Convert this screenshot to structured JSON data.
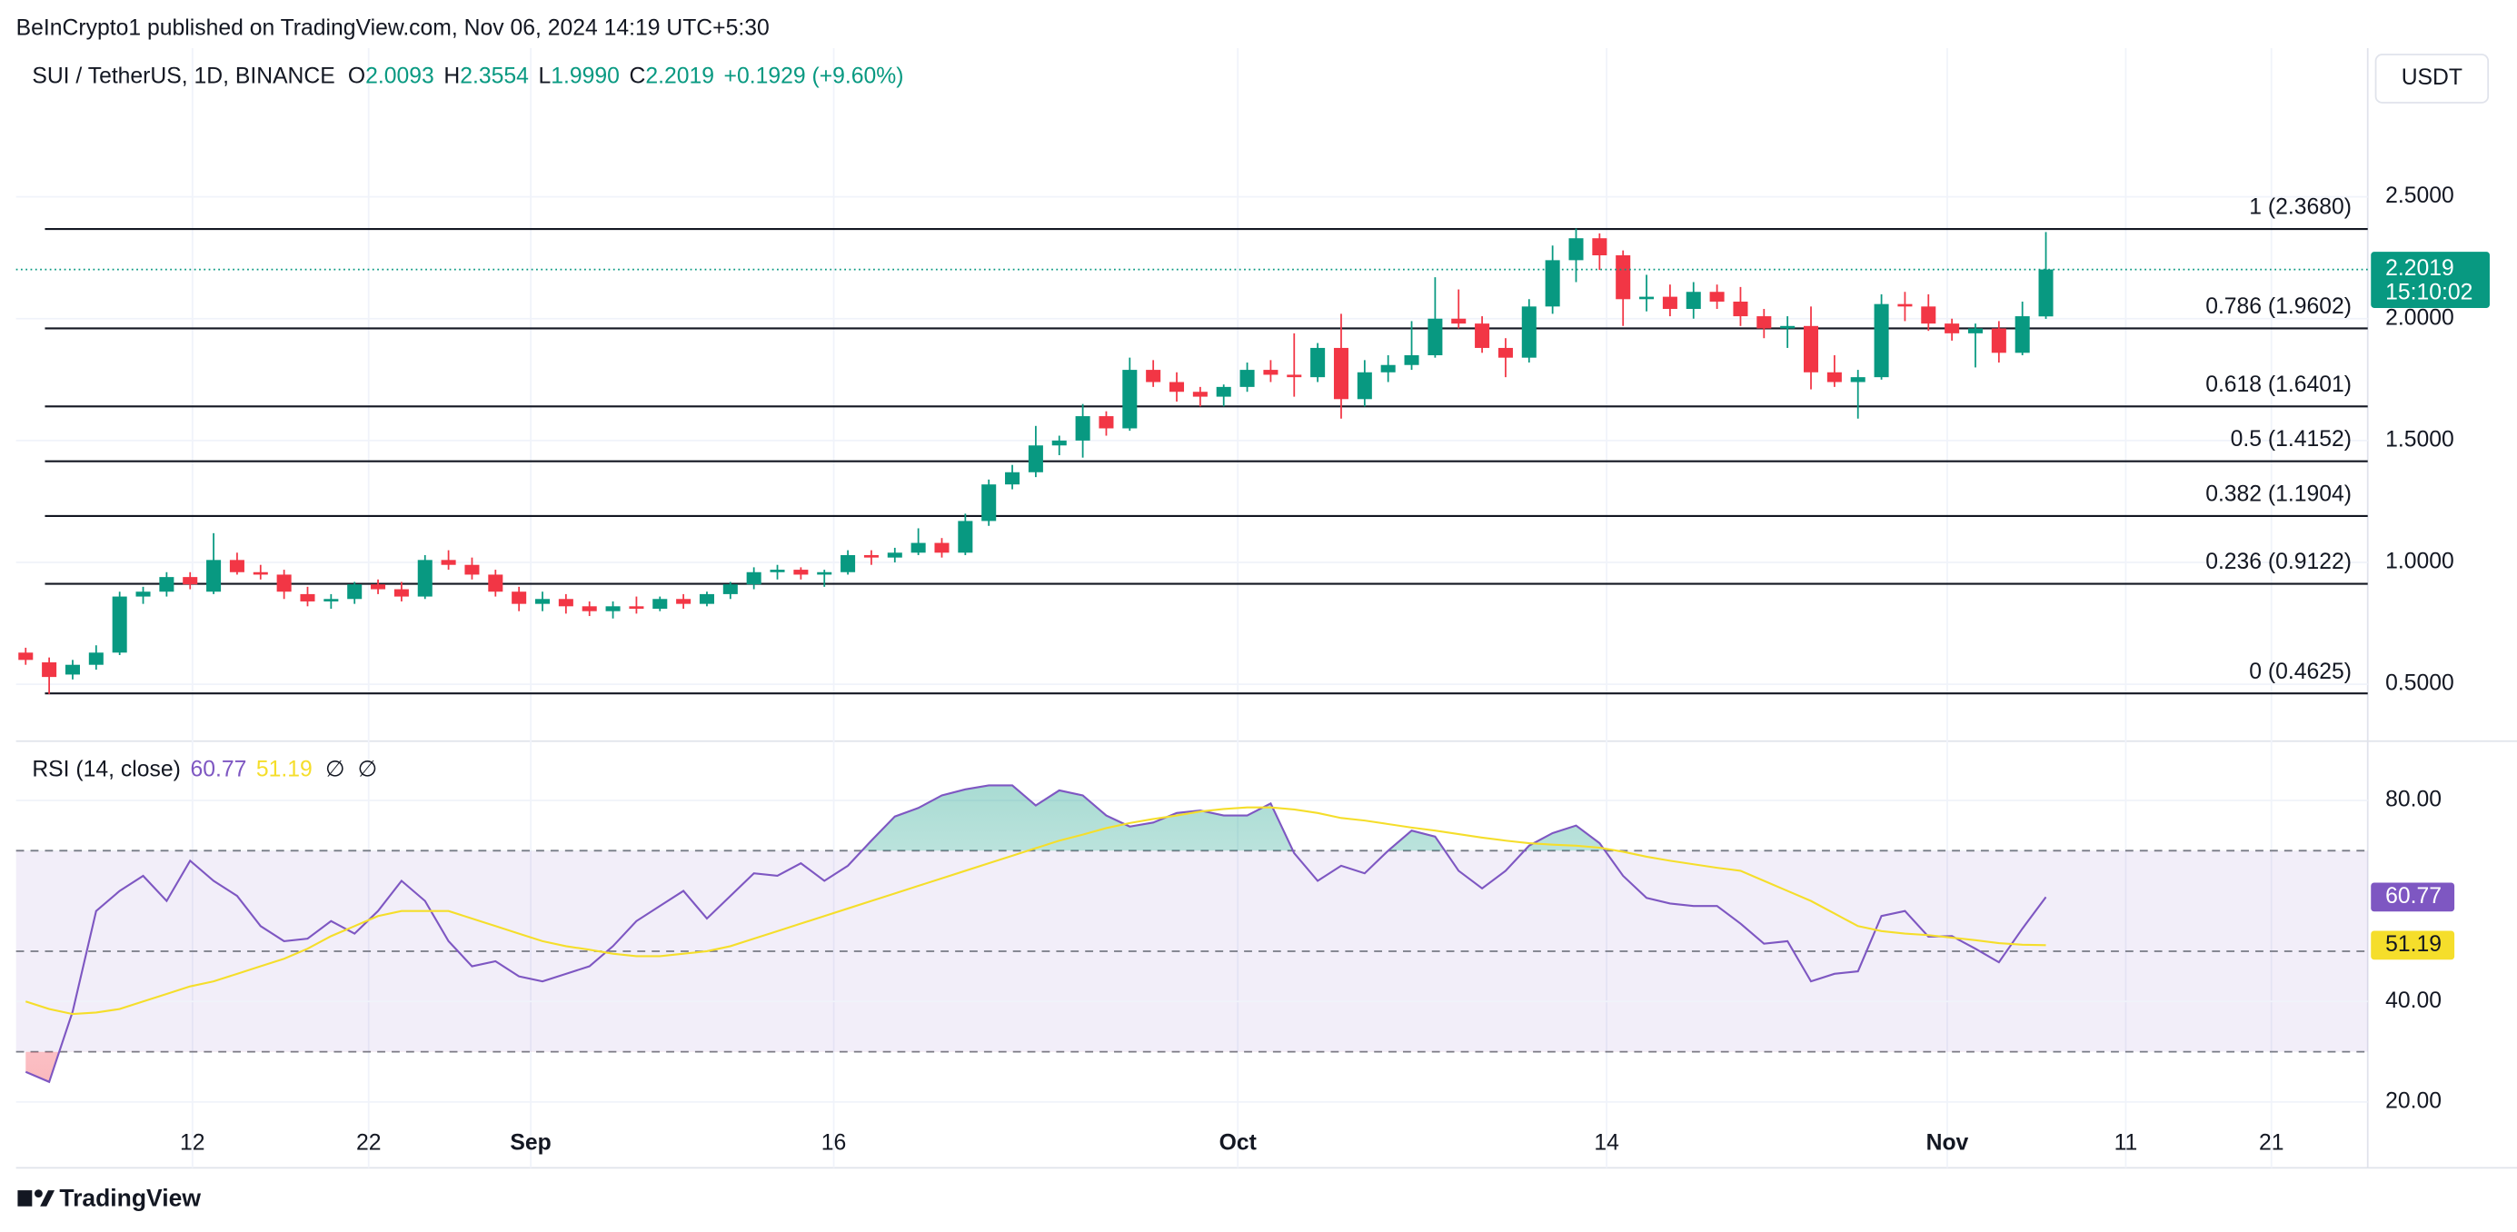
{
  "header": {
    "published": "BeInCrypto1 published on TradingView.com, Nov 06, 2024 14:19 UTC+5:30",
    "currency": "USDT",
    "footer": "TradingView"
  },
  "chart_data": [
    {
      "type": "candlestick",
      "title": "SUI / TetherUS, 1D, BINANCE",
      "ohlc": [
        {
          "key": "O",
          "value": "2.0093"
        },
        {
          "key": "H",
          "value": "2.3554"
        },
        {
          "key": "L",
          "value": "1.9990"
        },
        {
          "key": "C",
          "value": "2.2019"
        }
      ],
      "change": "+0.1929 (+9.60%)",
      "countdown": "15:10:02",
      "up_color": "#089981",
      "down_color": "#f23645",
      "open": [
        0.63,
        0.59,
        0.54,
        0.58,
        0.63,
        0.86,
        0.88,
        0.94,
        0.88,
        1.01,
        0.96,
        0.95,
        0.87,
        0.84,
        0.85,
        0.91,
        0.89,
        0.86,
        1.01,
        0.99,
        0.95,
        0.88,
        0.83,
        0.85,
        0.82,
        0.8,
        0.82,
        0.81,
        0.85,
        0.83,
        0.87,
        0.91,
        0.96,
        0.97,
        0.95,
        0.96,
        1.03,
        1.02,
        1.04,
        1.08,
        1.04,
        1.17,
        1.32,
        1.37,
        1.48,
        1.5,
        1.6,
        1.55,
        1.79,
        1.74,
        1.7,
        1.68,
        1.72,
        1.79,
        1.77,
        1.76,
        1.88,
        1.67,
        1.78,
        1.81,
        1.85,
        2.0,
        1.98,
        1.88,
        1.84,
        2.05,
        2.24,
        2.33,
        2.26,
        2.08,
        2.09,
        2.04,
        2.11,
        2.07,
        2.01,
        1.96,
        1.97,
        1.78,
        1.74,
        1.76,
        2.06,
        2.05,
        1.98,
        1.94,
        1.96,
        1.86,
        2.0093
      ],
      "high": [
        0.65,
        0.61,
        0.6,
        0.66,
        0.88,
        0.9,
        0.96,
        0.96,
        1.12,
        1.04,
        0.99,
        0.97,
        0.9,
        0.87,
        0.92,
        0.93,
        0.92,
        1.03,
        1.05,
        1.02,
        0.97,
        0.9,
        0.88,
        0.87,
        0.84,
        0.84,
        0.86,
        0.86,
        0.87,
        0.88,
        0.92,
        0.98,
        0.99,
        0.98,
        0.97,
        1.05,
        1.05,
        1.06,
        1.14,
        1.1,
        1.2,
        1.34,
        1.4,
        1.56,
        1.52,
        1.65,
        1.62,
        1.84,
        1.83,
        1.78,
        1.72,
        1.73,
        1.82,
        1.83,
        1.94,
        1.9,
        2.02,
        1.83,
        1.85,
        1.99,
        2.17,
        2.12,
        2.01,
        1.92,
        2.08,
        2.3,
        2.37,
        2.35,
        2.28,
        2.18,
        2.14,
        2.15,
        2.14,
        2.13,
        2.04,
        2.01,
        2.05,
        1.85,
        1.79,
        2.1,
        2.11,
        2.1,
        2.0,
        1.98,
        1.99,
        2.07,
        2.3554
      ],
      "low": [
        0.58,
        0.46,
        0.52,
        0.56,
        0.62,
        0.83,
        0.86,
        0.89,
        0.87,
        0.95,
        0.93,
        0.85,
        0.82,
        0.81,
        0.83,
        0.87,
        0.84,
        0.85,
        0.97,
        0.93,
        0.86,
        0.8,
        0.8,
        0.79,
        0.78,
        0.77,
        0.79,
        0.8,
        0.81,
        0.82,
        0.85,
        0.89,
        0.93,
        0.93,
        0.9,
        0.95,
        0.99,
        1.0,
        1.03,
        1.02,
        1.03,
        1.15,
        1.3,
        1.35,
        1.44,
        1.43,
        1.52,
        1.54,
        1.72,
        1.66,
        1.64,
        1.64,
        1.7,
        1.74,
        1.68,
        1.74,
        1.59,
        1.64,
        1.74,
        1.79,
        1.84,
        1.96,
        1.86,
        1.76,
        1.82,
        2.02,
        2.15,
        2.2,
        1.97,
        2.03,
        2.01,
        2.0,
        2.04,
        1.97,
        1.92,
        1.88,
        1.71,
        1.72,
        1.59,
        1.75,
        1.99,
        1.95,
        1.91,
        1.8,
        1.82,
        1.85,
        1.999
      ],
      "close": [
        0.6,
        0.53,
        0.58,
        0.63,
        0.86,
        0.88,
        0.94,
        0.91,
        1.01,
        0.96,
        0.95,
        0.88,
        0.84,
        0.85,
        0.91,
        0.89,
        0.86,
        1.01,
        0.99,
        0.95,
        0.88,
        0.83,
        0.85,
        0.82,
        0.8,
        0.82,
        0.81,
        0.85,
        0.83,
        0.87,
        0.91,
        0.96,
        0.97,
        0.95,
        0.96,
        1.03,
        1.02,
        1.04,
        1.08,
        1.04,
        1.17,
        1.32,
        1.37,
        1.48,
        1.5,
        1.6,
        1.55,
        1.79,
        1.74,
        1.7,
        1.68,
        1.72,
        1.79,
        1.77,
        1.76,
        1.88,
        1.67,
        1.78,
        1.81,
        1.85,
        2.0,
        1.98,
        1.88,
        1.84,
        2.05,
        2.24,
        2.33,
        2.26,
        2.08,
        2.09,
        2.04,
        2.11,
        2.07,
        2.01,
        1.96,
        1.97,
        1.78,
        1.74,
        1.76,
        2.06,
        2.05,
        1.98,
        1.94,
        1.96,
        1.86,
        2.01,
        2.2019
      ],
      "xlim": [
        -0.41,
        99.7
      ],
      "xticks": [
        {
          "value": 7.1,
          "label": "12"
        },
        {
          "value": 14.6,
          "label": "22"
        },
        {
          "value": 21.5,
          "label": "Sep"
        },
        {
          "value": 34.4,
          "label": "16"
        },
        {
          "value": 51.6,
          "label": "Oct"
        },
        {
          "value": 67.3,
          "label": "14"
        },
        {
          "value": 81.8,
          "label": "Nov"
        },
        {
          "value": 89.4,
          "label": "11"
        },
        {
          "value": 95.6,
          "label": "21"
        }
      ],
      "ylim": [
        0.28,
        3.11
      ],
      "yticks": [
        {
          "value": 0.5,
          "label": "0.5000"
        },
        {
          "value": 1,
          "label": "1.0000"
        },
        {
          "value": 1.5,
          "label": "1.5000"
        },
        {
          "value": 2,
          "label": "2.0000"
        },
        {
          "value": 2.5,
          "label": "2.5000"
        }
      ],
      "levels": [
        {
          "value": 2.368,
          "label": "1 (2.3680)"
        },
        {
          "value": 1.9602,
          "label": "0.786 (1.9602)"
        },
        {
          "value": 1.6401,
          "label": "0.618 (1.6401)"
        },
        {
          "value": 1.4152,
          "label": "0.5 (1.4152)"
        },
        {
          "value": 1.1904,
          "label": "0.382 (1.1904)"
        },
        {
          "value": 0.9122,
          "label": "0.236 (0.9122)"
        },
        {
          "value": 0.4625,
          "label": "0 (0.4625)"
        }
      ],
      "grid": true
    },
    {
      "type": "line",
      "title": "RSI (14, close)",
      "markers": [
        "∅",
        "∅"
      ],
      "series": [
        {
          "color": "#7e57c2",
          "values": [
            26,
            24,
            38,
            58,
            62,
            65,
            60,
            68,
            64,
            61,
            55,
            52,
            52.5,
            56,
            53.5,
            58,
            64,
            60,
            52,
            47,
            48,
            45,
            44,
            45.5,
            47,
            51,
            56,
            59,
            62,
            56.5,
            61,
            65.5,
            65,
            67.5,
            64,
            67,
            72,
            76.8,
            78.5,
            81,
            82.2,
            83,
            83,
            79,
            82,
            81,
            77,
            74.8,
            75.6,
            77.5,
            78,
            77,
            77,
            79.4,
            69.5,
            64,
            67,
            65.5,
            70,
            74,
            72.8,
            66,
            62.5,
            66,
            71,
            73.5,
            75,
            71.5,
            65,
            60.6,
            59.5,
            59,
            59,
            55.5,
            51.5,
            52,
            44,
            45.5,
            46,
            57,
            58,
            52.9,
            53,
            50.5,
            47.8,
            54.5,
            60.77
          ]
        },
        {
          "color": "#f5de2b",
          "values": [
            40,
            38.5,
            37.5,
            37.8,
            38.5,
            40,
            41.5,
            43,
            44,
            45.5,
            47,
            48.5,
            50.5,
            53,
            55,
            57,
            58,
            58,
            58,
            56.5,
            55,
            53.5,
            52,
            51,
            50.3,
            49.5,
            49,
            49,
            49.5,
            50,
            51,
            52.5,
            54,
            55.5,
            57,
            58.5,
            60,
            61.5,
            63,
            64.5,
            66,
            67.5,
            69,
            70.5,
            72,
            73.2,
            74.5,
            75.5,
            76.3,
            77,
            77.8,
            78.3,
            78.6,
            78.6,
            78.2,
            77.5,
            76.5,
            76,
            75.3,
            74.6,
            74,
            73.3,
            72.6,
            72,
            71.5,
            71.2,
            71,
            70.6,
            69.8,
            68.8,
            68,
            67.3,
            66.6,
            66,
            64,
            62,
            60,
            57.5,
            55,
            54,
            53.5,
            53.2,
            52.7,
            52.2,
            51.6,
            51.3,
            51.19
          ]
        }
      ],
      "bands": [
        70,
        50,
        30
      ],
      "xlim": [
        -0.41,
        99.7
      ],
      "ylim": [
        6.9,
        91.8
      ],
      "yticks": [
        {
          "value": 20,
          "label": "20.00"
        },
        {
          "value": 40,
          "label": "40.00"
        },
        {
          "value": 80,
          "label": "80.00"
        }
      ],
      "grid": true
    }
  ]
}
